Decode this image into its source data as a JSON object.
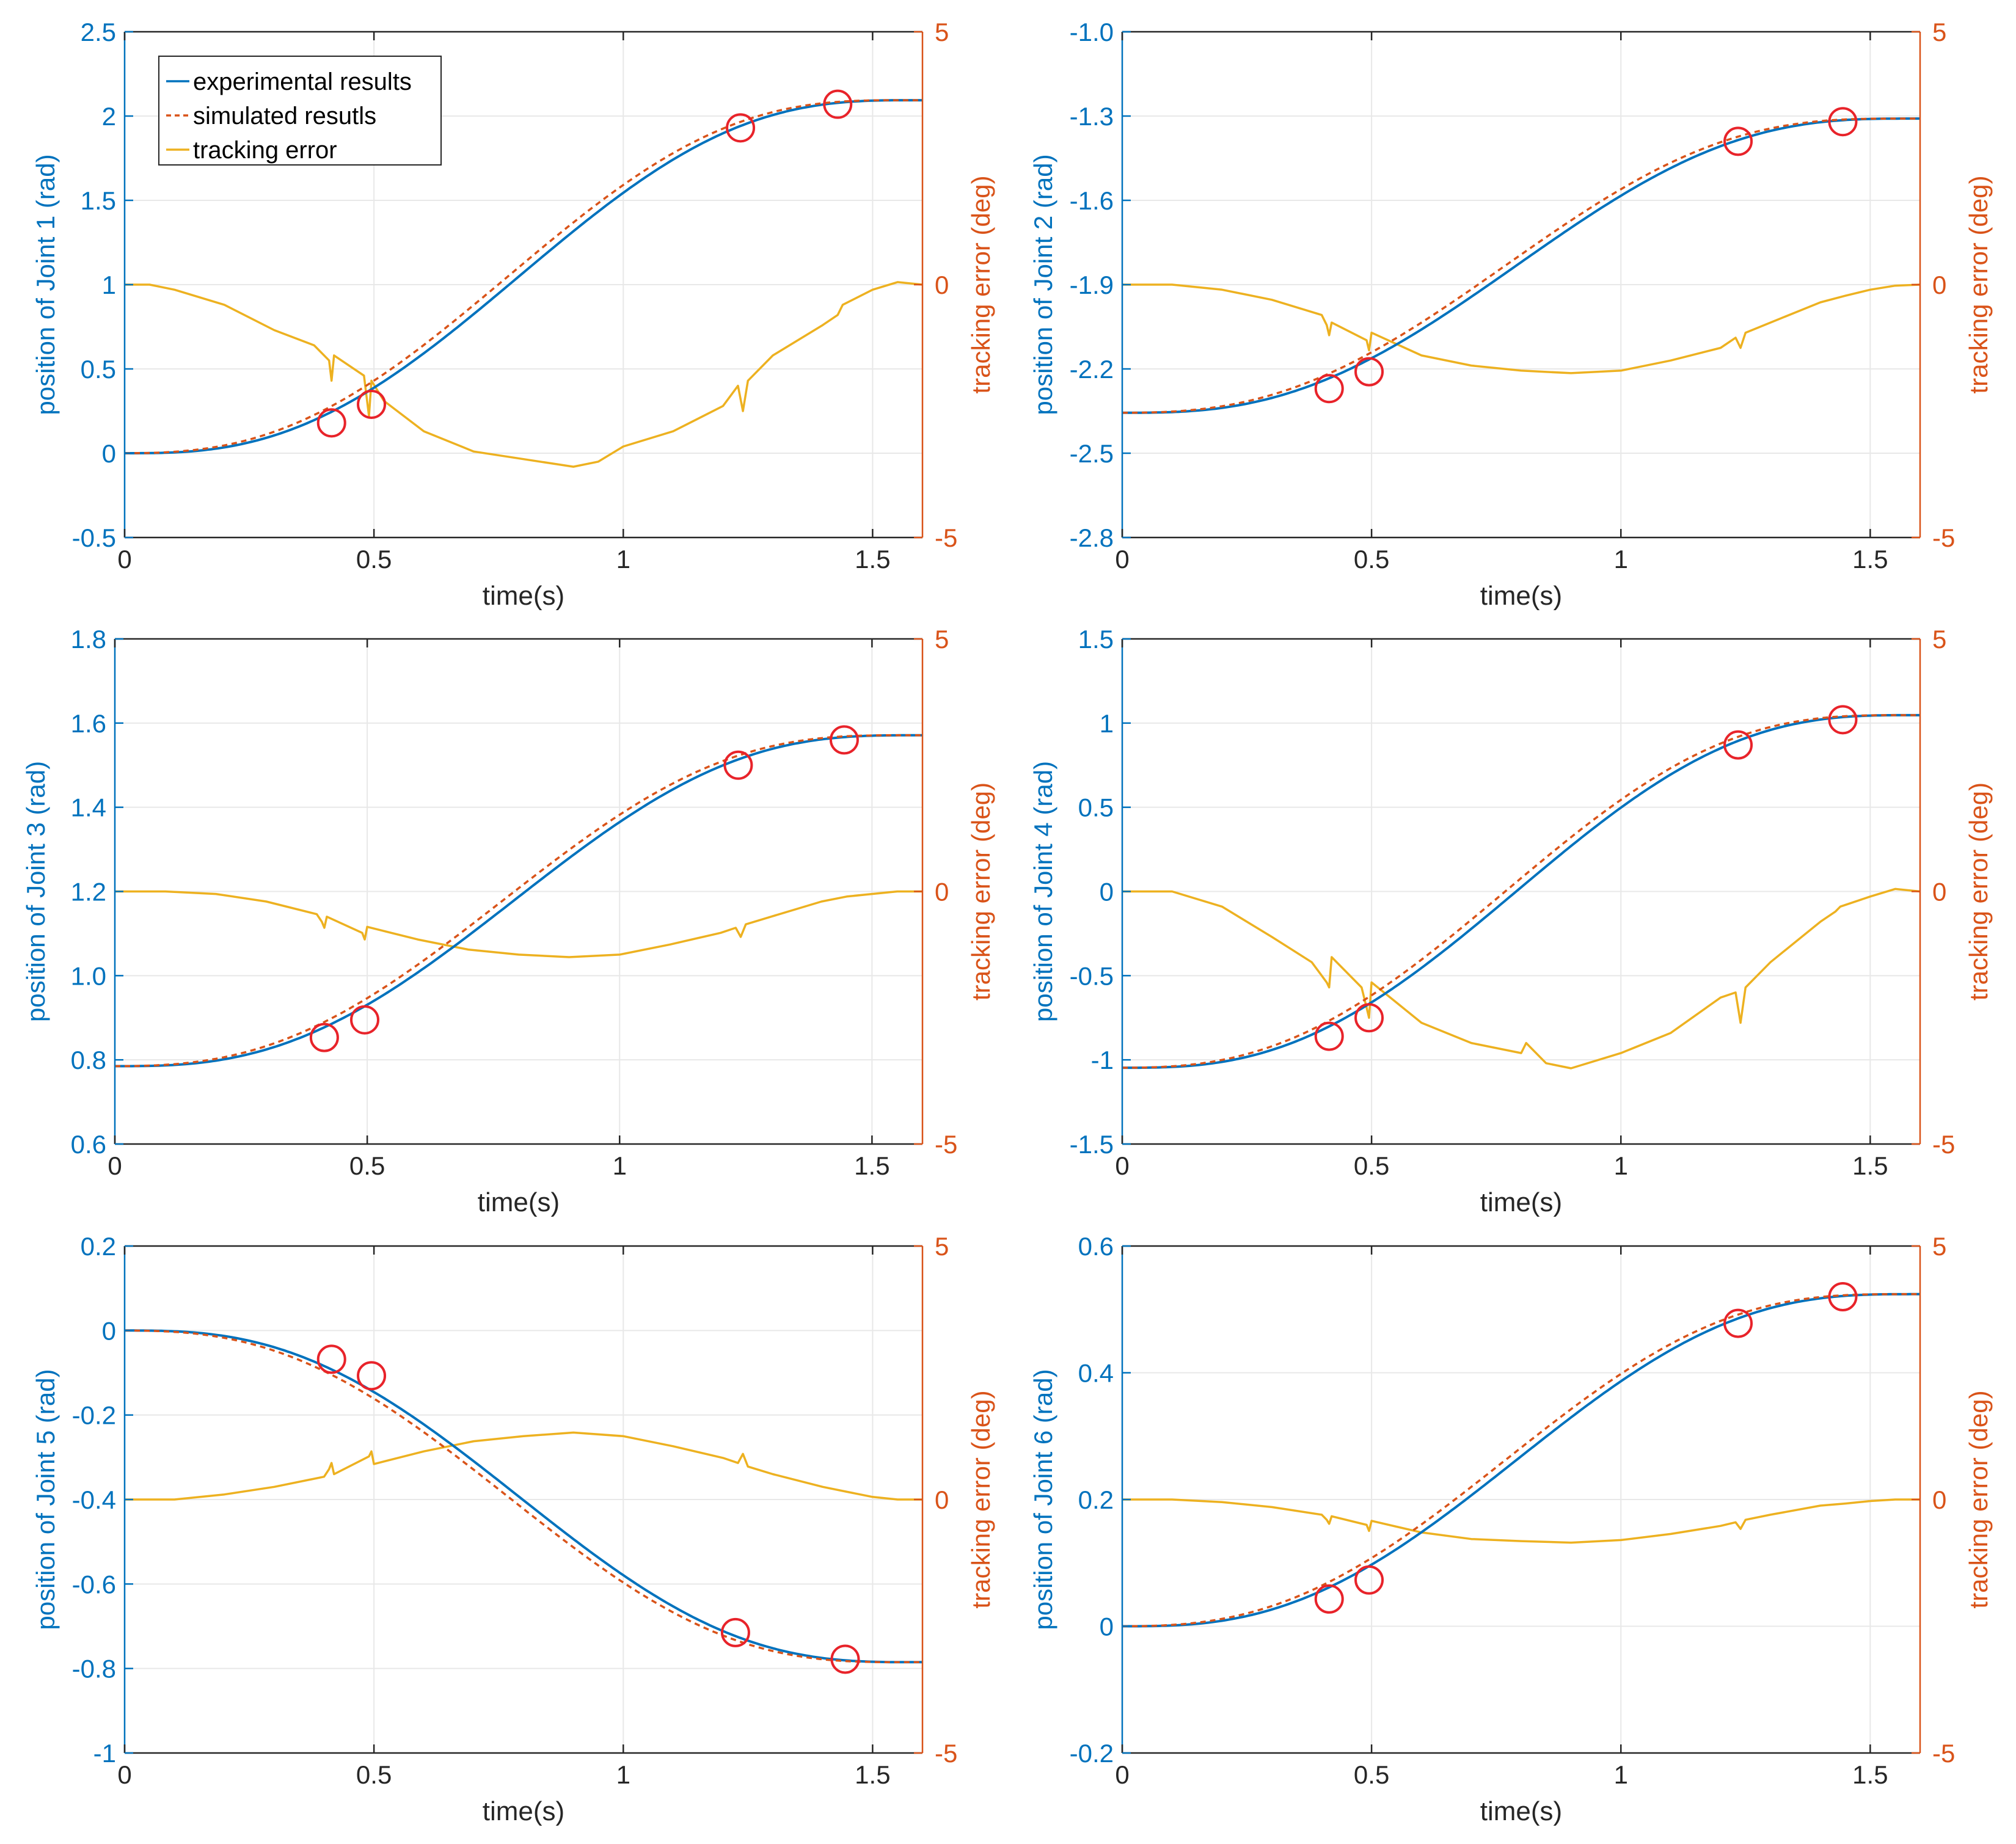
{
  "colors": {
    "experimental": "#0072BD",
    "simulated": "#D95319",
    "error": "#EDB120",
    "marker": "#E8232A",
    "axis_left": "#0072BD",
    "axis_right": "#D95319"
  },
  "legend": {
    "items": [
      "experimental results",
      "simulated resutls",
      "tracking error"
    ]
  },
  "chart_data": [
    {
      "type": "line",
      "title": "",
      "xlabel": "time(s)",
      "ylabel": "position of Joint 1 (rad)",
      "ylabel_right": "tracking error (deg)",
      "xlim": [
        0,
        1.6
      ],
      "ylim": [
        -0.5,
        2.5
      ],
      "ylim_right": [
        -5,
        5
      ],
      "xticks": [
        "0",
        "0.5",
        "1",
        "1.5"
      ],
      "yticks": [
        "-0.5",
        "0",
        "0.5",
        "1",
        "1.5",
        "2",
        "2.5"
      ],
      "yticks_right": [
        "-5",
        "0",
        "5"
      ],
      "grid": true,
      "legend": "top-left",
      "start": 0.0,
      "end": 2.094,
      "error": {
        "x": [
          0,
          0.05,
          0.1,
          0.2,
          0.3,
          0.38,
          0.41,
          0.415,
          0.42,
          0.48,
          0.49,
          0.495,
          0.52,
          0.6,
          0.7,
          0.8,
          0.9,
          0.95,
          1.0,
          1.1,
          1.2,
          1.23,
          1.24,
          1.25,
          1.3,
          1.4,
          1.43,
          1.44,
          1.5,
          1.55,
          1.6
        ],
        "y": [
          0,
          0,
          -0.1,
          -0.4,
          -0.9,
          -1.2,
          -1.5,
          -1.9,
          -1.4,
          -1.8,
          -2.6,
          -1.9,
          -2.3,
          -2.9,
          -3.3,
          -3.45,
          -3.6,
          -3.5,
          -3.2,
          -2.9,
          -2.4,
          -2.0,
          -2.5,
          -1.9,
          -1.4,
          -0.8,
          -0.6,
          -0.4,
          -0.1,
          0.05,
          0.0
        ]
      },
      "markers": [
        {
          "x": 0.415,
          "y": 0.18
        },
        {
          "x": 0.495,
          "y": 0.29
        },
        {
          "x": 1.235,
          "y": 1.93
        },
        {
          "x": 1.43,
          "y": 2.07
        }
      ]
    },
    {
      "type": "line",
      "title": "",
      "xlabel": "time(s)",
      "ylabel": "position of Joint 2 (rad)",
      "ylabel_right": "tracking error (deg)",
      "xlim": [
        0,
        1.6
      ],
      "ylim": [
        -2.8,
        -1.0
      ],
      "ylim_right": [
        -5,
        5
      ],
      "xticks": [
        "0",
        "0.5",
        "1",
        "1.5"
      ],
      "yticks": [
        "-2.8",
        "-2.5",
        "-2.2",
        "-1.9",
        "-1.6",
        "-1.3",
        "-1.0"
      ],
      "yticks_right": [
        "-5",
        "0",
        "5"
      ],
      "grid": true,
      "start": -2.356,
      "end": -1.309,
      "error": {
        "x": [
          0,
          0.1,
          0.2,
          0.3,
          0.4,
          0.41,
          0.415,
          0.42,
          0.49,
          0.495,
          0.5,
          0.6,
          0.7,
          0.8,
          0.9,
          1.0,
          1.1,
          1.2,
          1.23,
          1.24,
          1.25,
          1.3,
          1.4,
          1.45,
          1.5,
          1.55,
          1.6
        ],
        "y": [
          0,
          0,
          -0.1,
          -0.3,
          -0.6,
          -0.8,
          -1.0,
          -0.75,
          -1.1,
          -1.3,
          -0.95,
          -1.4,
          -1.6,
          -1.7,
          -1.75,
          -1.7,
          -1.5,
          -1.25,
          -1.05,
          -1.25,
          -0.95,
          -0.75,
          -0.35,
          -0.22,
          -0.1,
          -0.02,
          0.0
        ]
      },
      "markers": [
        {
          "x": 0.415,
          "y": -2.27
        },
        {
          "x": 0.495,
          "y": -2.21
        },
        {
          "x": 1.235,
          "y": -1.39
        },
        {
          "x": 1.445,
          "y": -1.32
        }
      ]
    },
    {
      "type": "line",
      "title": "",
      "xlabel": "time(s)",
      "ylabel": "position of Joint 3 (rad)",
      "ylabel_right": "tracking error (deg)",
      "xlim": [
        0,
        1.6
      ],
      "ylim": [
        0.6,
        1.8
      ],
      "ylim_right": [
        -5,
        5
      ],
      "xticks": [
        "0",
        "0.5",
        "1",
        "1.5"
      ],
      "yticks": [
        "0.6",
        "0.8",
        "1.0",
        "1.2",
        "1.4",
        "1.6",
        "1.8"
      ],
      "yticks_right": [
        "-5",
        "0",
        "5"
      ],
      "grid": true,
      "start": 0.785,
      "end": 1.571,
      "error": {
        "x": [
          0,
          0.1,
          0.2,
          0.3,
          0.4,
          0.41,
          0.415,
          0.42,
          0.49,
          0.495,
          0.5,
          0.6,
          0.7,
          0.8,
          0.9,
          1.0,
          1.1,
          1.2,
          1.23,
          1.24,
          1.25,
          1.3,
          1.4,
          1.45,
          1.5,
          1.55,
          1.6
        ],
        "y": [
          0,
          0,
          -0.05,
          -0.2,
          -0.45,
          -0.6,
          -0.72,
          -0.5,
          -0.82,
          -0.95,
          -0.7,
          -0.95,
          -1.15,
          -1.25,
          -1.3,
          -1.25,
          -1.05,
          -0.82,
          -0.72,
          -0.9,
          -0.65,
          -0.5,
          -0.2,
          -0.1,
          -0.05,
          0.0,
          0.0
        ]
      },
      "markers": [
        {
          "x": 0.415,
          "y": 0.853
        },
        {
          "x": 0.495,
          "y": 0.895
        },
        {
          "x": 1.235,
          "y": 1.5
        },
        {
          "x": 1.445,
          "y": 1.56
        }
      ]
    },
    {
      "type": "line",
      "title": "",
      "xlabel": "time(s)",
      "ylabel": "position of Joint 4 (rad)",
      "ylabel_right": "tracking error (deg)",
      "xlim": [
        0,
        1.6
      ],
      "ylim": [
        -1.5,
        1.5
      ],
      "ylim_right": [
        -5,
        5
      ],
      "xticks": [
        "0",
        "0.5",
        "1",
        "1.5"
      ],
      "yticks": [
        "-1.5",
        "-1",
        "-0.5",
        "0",
        "0.5",
        "1",
        "1.5"
      ],
      "yticks_right": [
        "-5",
        "0",
        "5"
      ],
      "grid": true,
      "start": -1.047,
      "end": 1.047,
      "error": {
        "x": [
          0,
          0.1,
          0.2,
          0.3,
          0.38,
          0.41,
          0.415,
          0.42,
          0.48,
          0.49,
          0.495,
          0.5,
          0.55,
          0.6,
          0.7,
          0.8,
          0.81,
          0.85,
          0.9,
          1.0,
          1.1,
          1.2,
          1.23,
          1.24,
          1.25,
          1.3,
          1.4,
          1.43,
          1.44,
          1.5,
          1.55,
          1.6
        ],
        "y": [
          0,
          0,
          -0.3,
          -0.9,
          -1.4,
          -1.8,
          -1.9,
          -1.3,
          -1.9,
          -2.3,
          -2.5,
          -1.8,
          -2.2,
          -2.6,
          -3.0,
          -3.2,
          -3.0,
          -3.4,
          -3.5,
          -3.2,
          -2.8,
          -2.1,
          -2.0,
          -2.6,
          -1.9,
          -1.4,
          -0.6,
          -0.4,
          -0.3,
          -0.1,
          0.05,
          0.0
        ]
      },
      "markers": [
        {
          "x": 0.415,
          "y": -0.86
        },
        {
          "x": 0.495,
          "y": -0.75
        },
        {
          "x": 1.235,
          "y": 0.87
        },
        {
          "x": 1.445,
          "y": 1.02
        }
      ]
    },
    {
      "type": "line",
      "title": "",
      "xlabel": "time(s)",
      "ylabel": "position of Joint 5 (rad)",
      "ylabel_right": "tracking error (deg)",
      "xlim": [
        0,
        1.6
      ],
      "ylim": [
        -1,
        0.2
      ],
      "ylim_right": [
        -5,
        5
      ],
      "xticks": [
        "0",
        "0.5",
        "1",
        "1.5"
      ],
      "yticks": [
        "-1",
        "-0.8",
        "-0.6",
        "-0.4",
        "-0.2",
        "0",
        "0.2"
      ],
      "yticks_right": [
        "-5",
        "0",
        "5"
      ],
      "grid": true,
      "start": 0.0,
      "end": -0.785,
      "error": {
        "x": [
          0,
          0.1,
          0.2,
          0.3,
          0.4,
          0.41,
          0.415,
          0.42,
          0.49,
          0.495,
          0.5,
          0.6,
          0.7,
          0.8,
          0.9,
          1.0,
          1.1,
          1.2,
          1.23,
          1.24,
          1.25,
          1.3,
          1.4,
          1.45,
          1.5,
          1.55,
          1.6
        ],
        "y": [
          0,
          0,
          0.1,
          0.25,
          0.45,
          0.6,
          0.72,
          0.5,
          0.85,
          0.95,
          0.7,
          0.95,
          1.15,
          1.25,
          1.32,
          1.25,
          1.05,
          0.82,
          0.72,
          0.9,
          0.65,
          0.5,
          0.25,
          0.15,
          0.05,
          0.0,
          0.0
        ]
      },
      "markers": [
        {
          "x": 0.415,
          "y": -0.068
        },
        {
          "x": 0.495,
          "y": -0.107
        },
        {
          "x": 1.225,
          "y": -0.715
        },
        {
          "x": 1.445,
          "y": -0.778
        }
      ]
    },
    {
      "type": "line",
      "title": "",
      "xlabel": "time(s)",
      "ylabel": "position of Joint 6 (rad)",
      "ylabel_right": "tracking error (deg)",
      "xlim": [
        0,
        1.6
      ],
      "ylim": [
        -0.2,
        0.6
      ],
      "ylim_right": [
        -5,
        5
      ],
      "xticks": [
        "0",
        "0.5",
        "1",
        "1.5"
      ],
      "yticks": [
        "-0.2",
        "0",
        "0.2",
        "0.4",
        "0.6"
      ],
      "yticks_right": [
        "-5",
        "0",
        "5"
      ],
      "grid": true,
      "start": 0.0,
      "end": 0.524,
      "error": {
        "x": [
          0,
          0.1,
          0.2,
          0.3,
          0.4,
          0.41,
          0.415,
          0.42,
          0.49,
          0.495,
          0.5,
          0.6,
          0.7,
          0.8,
          0.9,
          1.0,
          1.1,
          1.2,
          1.23,
          1.24,
          1.25,
          1.3,
          1.4,
          1.45,
          1.5,
          1.55,
          1.6
        ],
        "y": [
          0,
          0,
          -0.05,
          -0.15,
          -0.3,
          -0.4,
          -0.48,
          -0.33,
          -0.5,
          -0.62,
          -0.42,
          -0.65,
          -0.78,
          -0.82,
          -0.85,
          -0.8,
          -0.68,
          -0.52,
          -0.45,
          -0.58,
          -0.4,
          -0.3,
          -0.12,
          -0.08,
          -0.03,
          0.0,
          0.0
        ]
      },
      "markers": [
        {
          "x": 0.415,
          "y": 0.043
        },
        {
          "x": 0.495,
          "y": 0.073
        },
        {
          "x": 1.235,
          "y": 0.478
        },
        {
          "x": 1.445,
          "y": 0.52
        }
      ]
    }
  ]
}
